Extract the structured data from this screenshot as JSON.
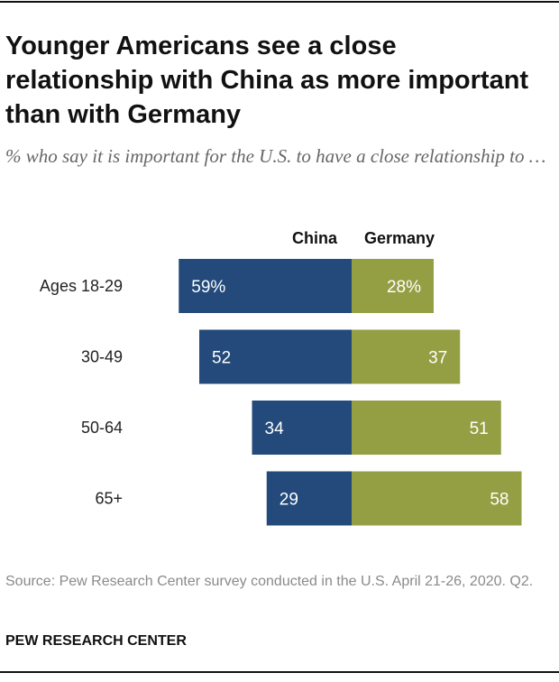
{
  "title": "Younger Americans see a close relationship with China as more important than with Germany",
  "subtitle": "% who say it is important for the U.S. to have a close relationship to …",
  "source": "Source: Pew Research Center survey conducted in the U.S. April 21-26, 2020. Q2.",
  "organization": "PEW RESEARCH CENTER",
  "colors": {
    "china": "#234a7a",
    "germany": "#949f44",
    "label_text": "#ffffff",
    "axis_text": "#222222"
  },
  "chart_data": {
    "type": "bar",
    "orientation": "horizontal-diverging",
    "title": "Younger Americans see a close relationship with China as more important than with Germany",
    "categories": [
      "Ages 18-29",
      "30-49",
      "50-64",
      "65+"
    ],
    "series": [
      {
        "name": "China",
        "values": [
          59,
          52,
          34,
          29
        ],
        "labels": [
          "59%",
          "52",
          "34",
          "29"
        ],
        "direction": "left"
      },
      {
        "name": "Germany",
        "values": [
          28,
          37,
          51,
          58
        ],
        "labels": [
          "28%",
          "37",
          "51",
          "58"
        ],
        "direction": "right"
      }
    ],
    "unit": "%",
    "xlim": [
      0,
      100
    ]
  }
}
